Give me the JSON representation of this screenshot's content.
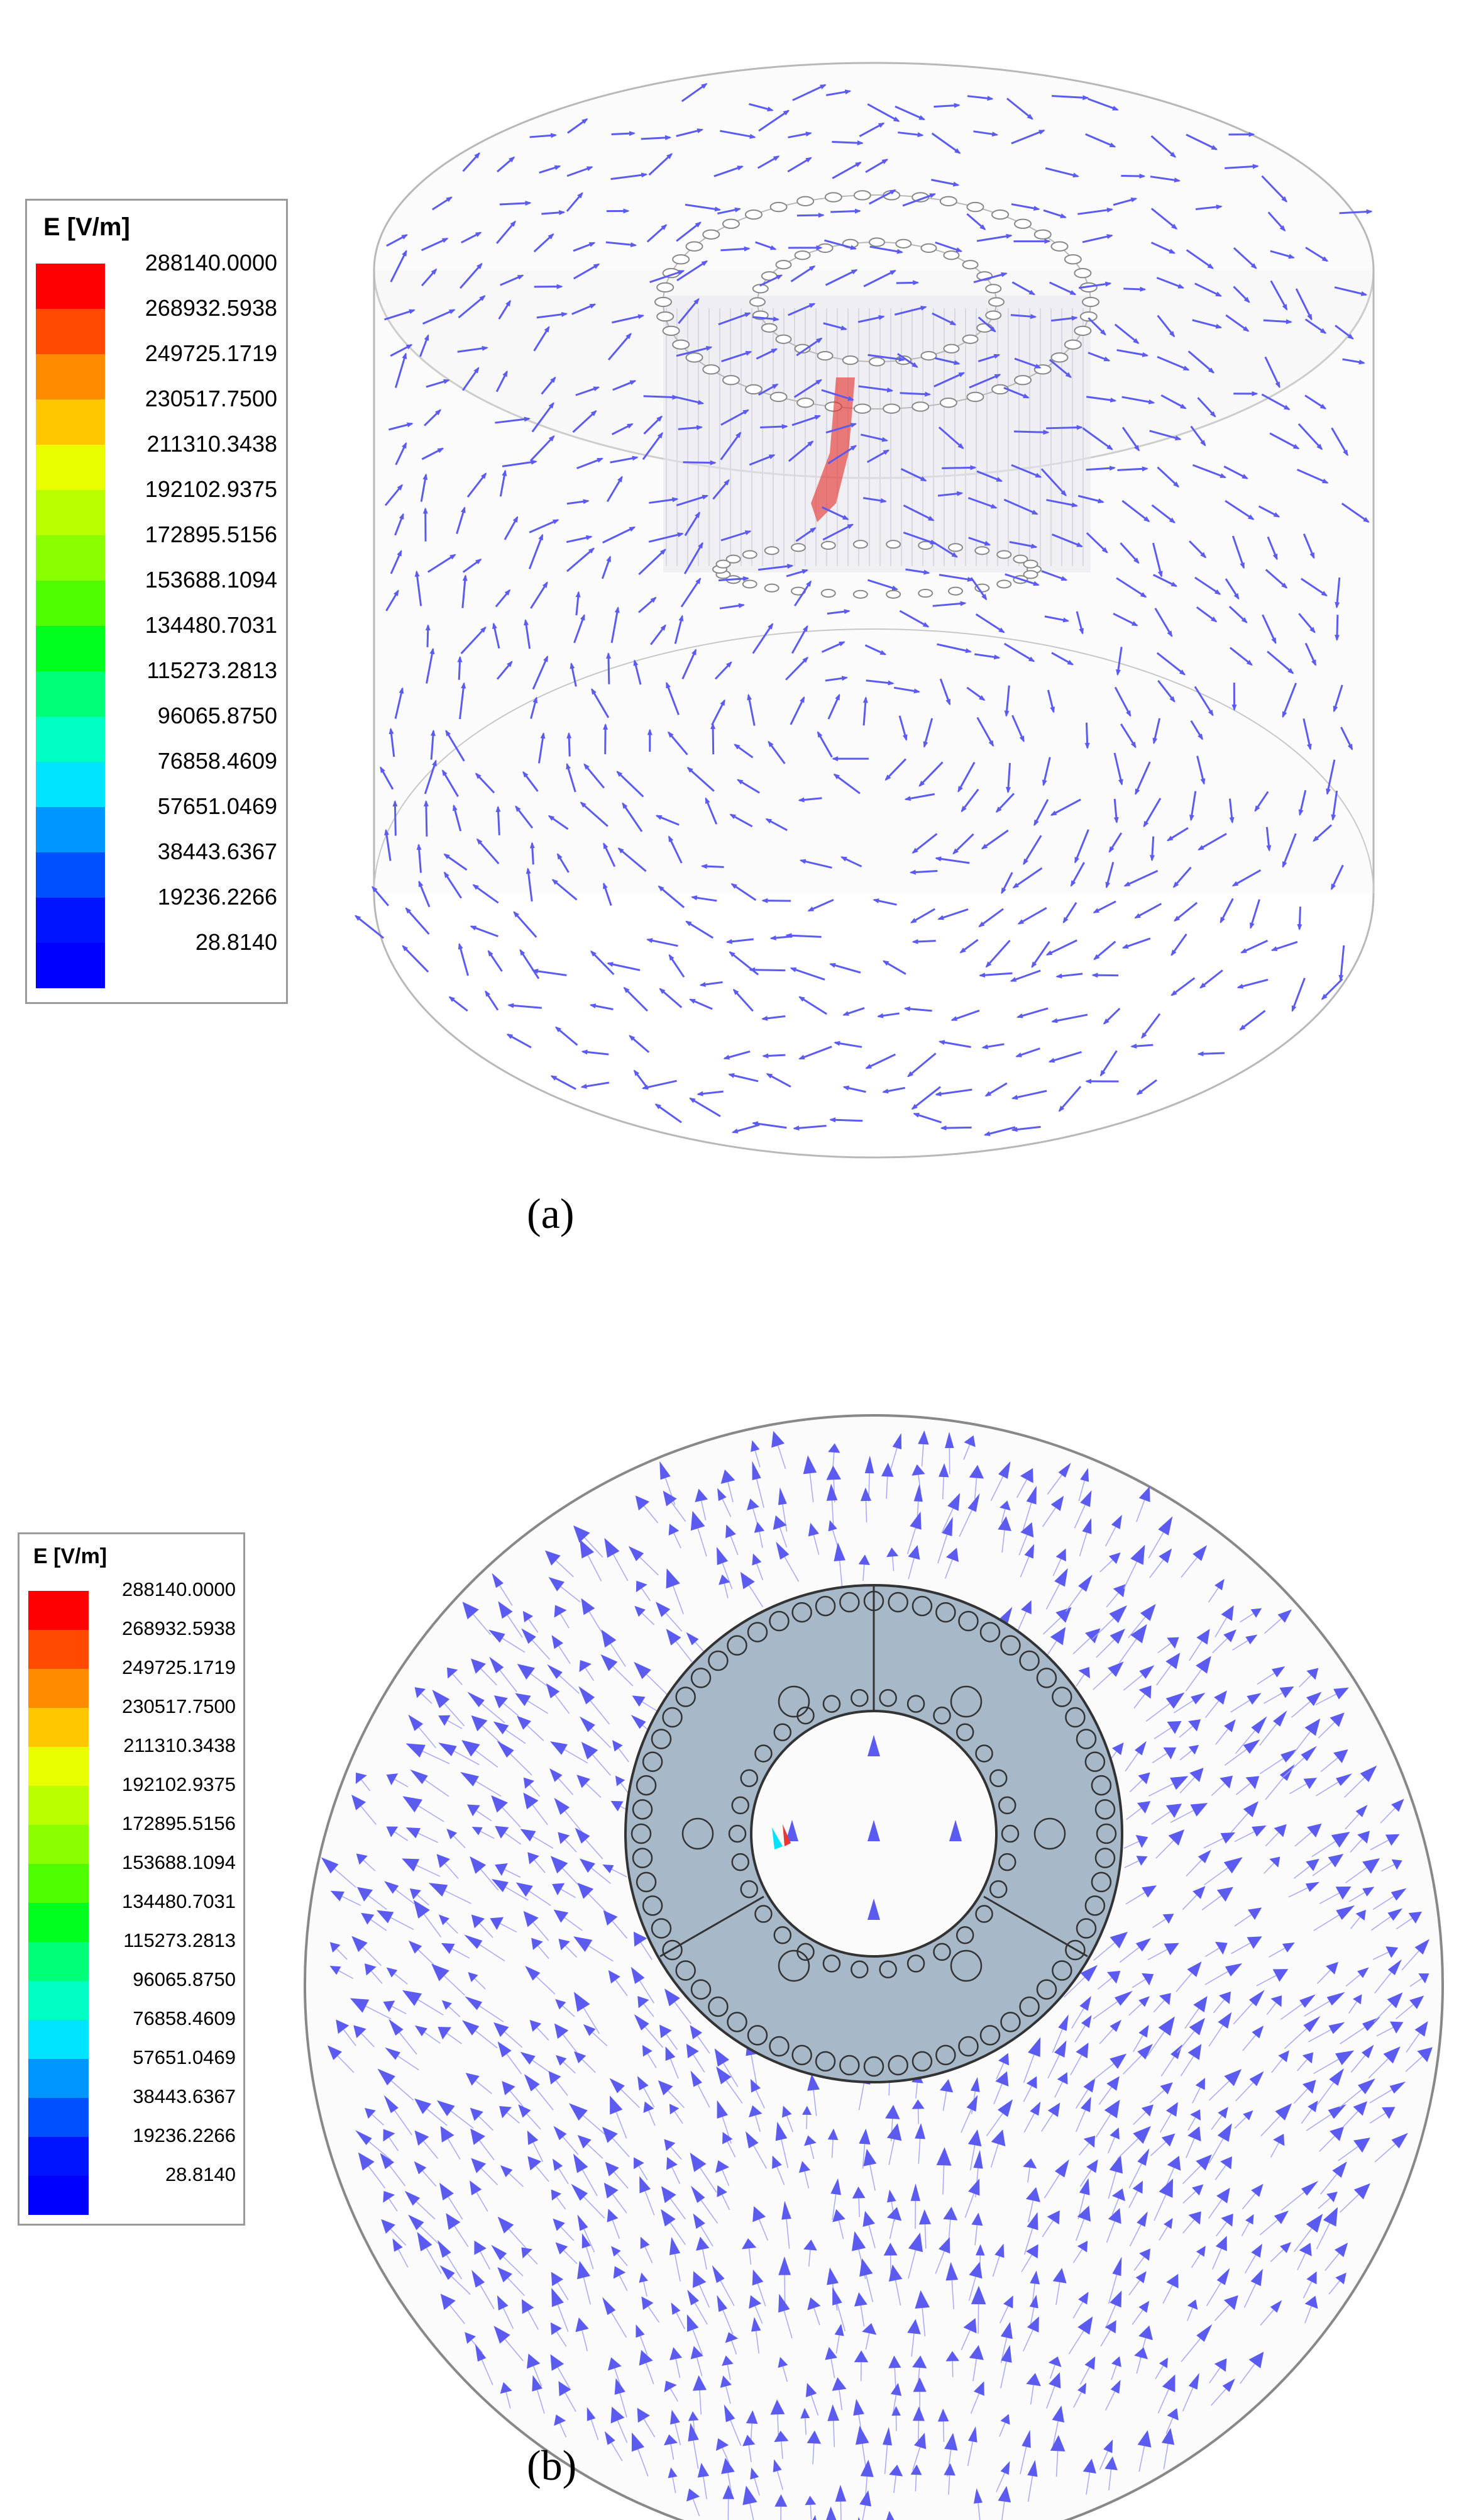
{
  "legend_a": {
    "title": "E [V/m]",
    "levels": [
      {
        "value": "288140.0000",
        "color": "#ff0000"
      },
      {
        "value": "268932.5938",
        "color": "#ff4a00"
      },
      {
        "value": "249725.1719",
        "color": "#ff8c00"
      },
      {
        "value": "230517.7500",
        "color": "#ffc700"
      },
      {
        "value": "211310.3438",
        "color": "#e9ff00"
      },
      {
        "value": "192102.9375",
        "color": "#b9ff00"
      },
      {
        "value": "172895.5156",
        "color": "#8aff00"
      },
      {
        "value": "153688.1094",
        "color": "#4dff00"
      },
      {
        "value": "134480.7031",
        "color": "#00ff1e"
      },
      {
        "value": "115273.2813",
        "color": "#00ff78"
      },
      {
        "value": "96065.8750",
        "color": "#00ffc4"
      },
      {
        "value": "76858.4609",
        "color": "#00e4ff"
      },
      {
        "value": "57651.0469",
        "color": "#0096ff"
      },
      {
        "value": "38443.6367",
        "color": "#0050ff"
      },
      {
        "value": "19236.2266",
        "color": "#0014ff"
      },
      {
        "value": "28.8140",
        "color": "#0000ff"
      }
    ]
  },
  "legend_b": {
    "title": "E [V/m]",
    "levels": [
      {
        "value": "288140.0000",
        "color": "#ff0000"
      },
      {
        "value": "268932.5938",
        "color": "#ff4a00"
      },
      {
        "value": "249725.1719",
        "color": "#ff8c00"
      },
      {
        "value": "230517.7500",
        "color": "#ffc700"
      },
      {
        "value": "211310.3438",
        "color": "#e9ff00"
      },
      {
        "value": "192102.9375",
        "color": "#b9ff00"
      },
      {
        "value": "172895.5156",
        "color": "#8aff00"
      },
      {
        "value": "153688.1094",
        "color": "#4dff00"
      },
      {
        "value": "134480.7031",
        "color": "#00ff1e"
      },
      {
        "value": "115273.2813",
        "color": "#00ff78"
      },
      {
        "value": "96065.8750",
        "color": "#00ffc4"
      },
      {
        "value": "76858.4609",
        "color": "#00e4ff"
      },
      {
        "value": "57651.0469",
        "color": "#0096ff"
      },
      {
        "value": "38443.6367",
        "color": "#0050ff"
      },
      {
        "value": "19236.2266",
        "color": "#0014ff"
      },
      {
        "value": "28.8140",
        "color": "#0000ff"
      }
    ]
  },
  "panel_a": {
    "label": "(a)",
    "letter": "a"
  },
  "panel_b": {
    "label": "(b)",
    "letter": "b"
  },
  "colors": {
    "arrow": "#5b5bf0",
    "arrow_light": "#a8a8f5",
    "outline": "#b8b8b8",
    "disk_fill": "#a7b8c9",
    "disk_edge": "#333333",
    "hot_spot": "#e53935"
  },
  "icons": {
    "arrow": "vector-arrow-icon",
    "hole": "hole-circle-icon"
  }
}
